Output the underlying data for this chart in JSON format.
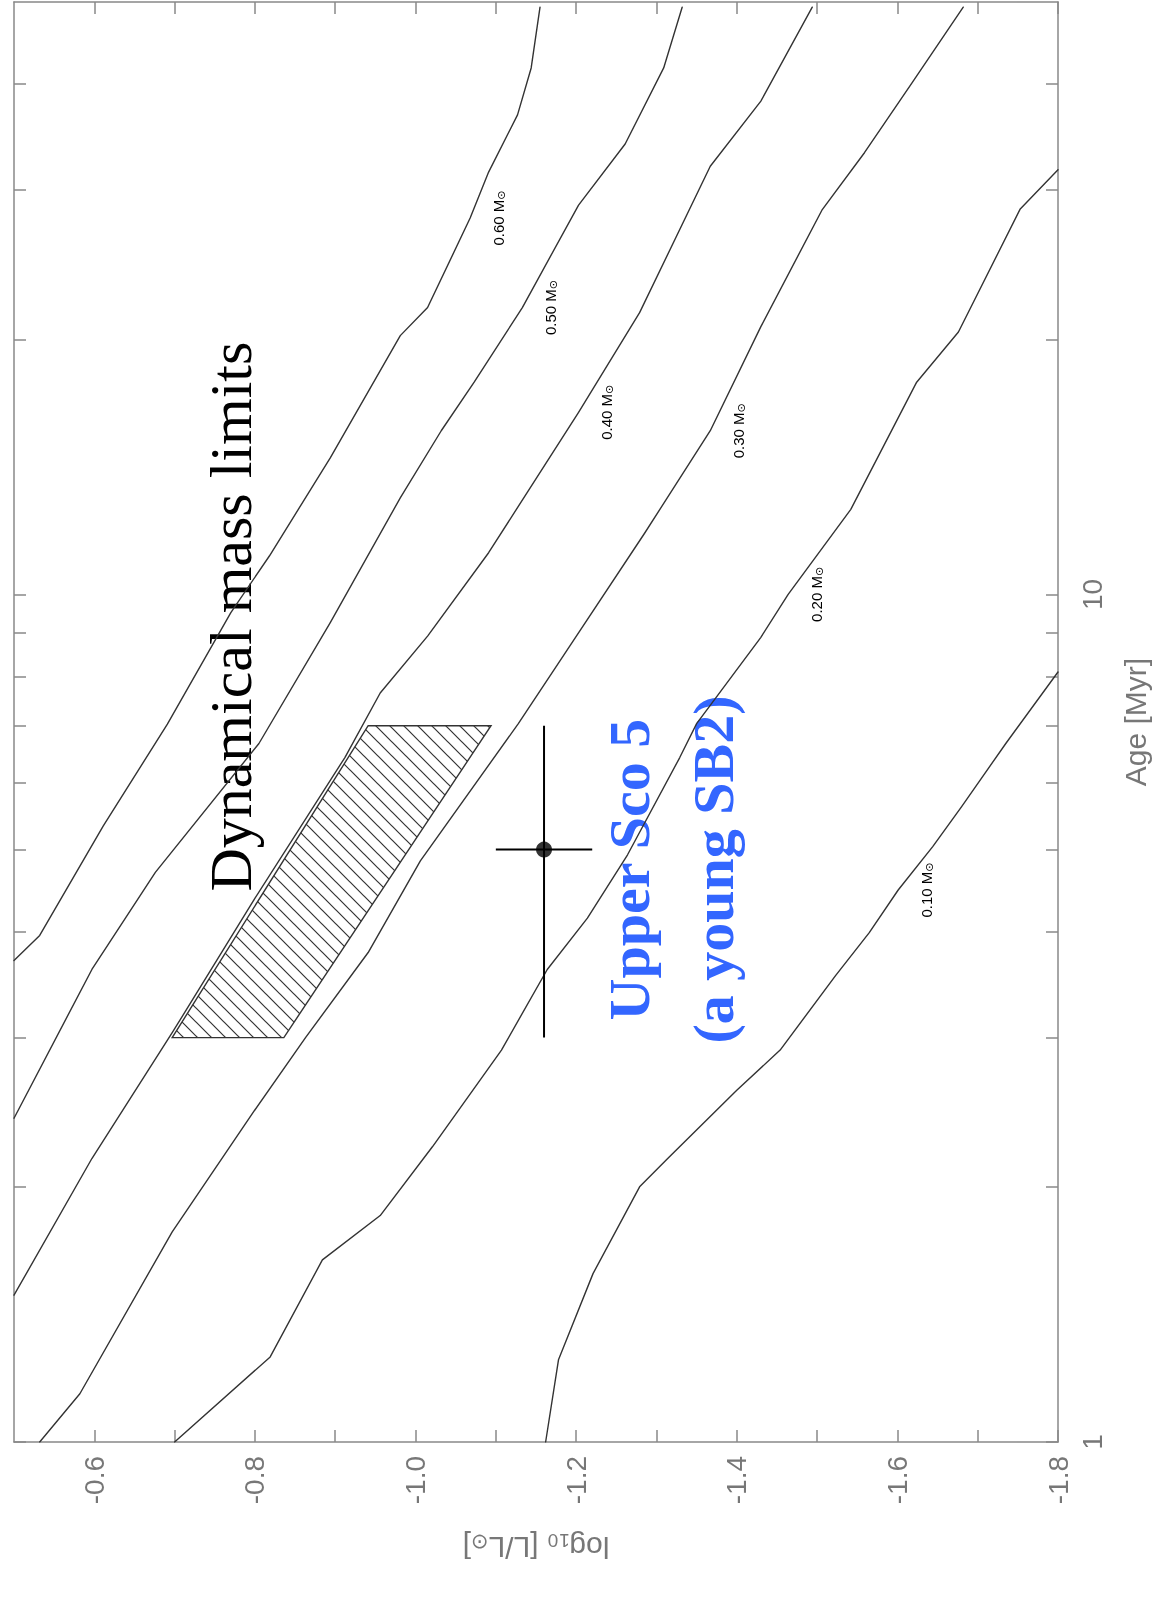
{
  "chart_data": {
    "type": "line",
    "xlabel": "log₁₀ [L/L$_{⊙}$]",
    "ylabel": "Age [Myr]",
    "log": "y",
    "xlim": [
      -0.5,
      -1.8
    ],
    "ylim": [
      1,
      50
    ],
    "xticks": [
      -0.6,
      {
        "value": -0.7,
        "label": null
      },
      -0.8,
      {
        "value": -0.9,
        "label": null
      },
      {
        "value": -1.0,
        "label": "-1.0"
      },
      {
        "value": -1.1,
        "label": null
      },
      -1.2,
      {
        "value": -1.3,
        "label": null
      },
      -1.4,
      {
        "value": -1.5,
        "label": null
      },
      -1.6,
      {
        "value": -1.7,
        "label": null
      },
      -1.8
    ],
    "yticks": [
      1,
      {
        "value": 2,
        "label": null
      },
      {
        "value": 3,
        "label": null
      },
      {
        "value": 4,
        "label": null
      },
      {
        "value": 5,
        "label": null
      },
      {
        "value": 6,
        "label": null
      },
      {
        "value": 7,
        "label": null
      },
      {
        "value": 8,
        "label": null
      },
      {
        "value": 9,
        "label": null
      },
      10,
      {
        "value": 20,
        "label": null
      },
      {
        "value": 30,
        "label": null
      },
      {
        "value": 40,
        "label": null
      }
    ],
    "annotations": [
      {
        "text": "Upper Sco 5\n(a young SB2)",
        "x": -1.16,
        "y": 5
      }
    ],
    "series": [
      {
        "name": "0.60 M$_{⊙}$",
        "color": "#333333",
        "marker": "none",
        "x": [
          -0.5,
          -0.532,
          -0.611,
          -0.691,
          -0.77,
          -0.818,
          -0.894,
          -0.981,
          -1.015,
          -1.068,
          -1.091,
          -1.127,
          -1.144,
          -1.155
        ],
        "values": [
          3.7,
          3.96,
          5.33,
          7.03,
          9.52,
          11.1,
          14.5,
          20.2,
          21.8,
          27.8,
          31.5,
          36.8,
          41.8,
          49.3
        ]
      },
      {
        "name": "0.50 M$_{⊙}$",
        "color": "#333333",
        "marker": "none",
        "x": [
          -0.5,
          -0.597,
          -0.676,
          -0.805,
          -0.894,
          -0.981,
          -1.032,
          -1.073,
          -1.133,
          -1.203,
          -1.261,
          -1.309,
          -1.332
        ],
        "values": [
          2.41,
          3.61,
          4.7,
          6.67,
          9.27,
          13.0,
          15.6,
          17.8,
          21.8,
          28.8,
          34.0,
          41.8,
          49.3
        ]
      },
      {
        "name": "0.40 M$_{⊙}$",
        "color": "#333333",
        "marker": "none",
        "x": [
          -0.5,
          -0.597,
          -0.697,
          -0.798,
          -0.912,
          -0.956,
          -1.015,
          -1.091,
          -1.203,
          -1.279,
          -1.367,
          -1.43,
          -1.494
        ],
        "values": [
          1.49,
          2.16,
          3.04,
          4.35,
          6.42,
          7.65,
          8.93,
          11.2,
          16.4,
          21.5,
          32.0,
          38.2,
          49.3
        ]
      },
      {
        "name": "0.30 M$_{⊙}$",
        "color": "#333333",
        "marker": "none",
        "x": [
          -0.532,
          -0.582,
          -0.697,
          -0.798,
          -0.863,
          -0.941,
          -1.006,
          -1.128,
          -1.192,
          -1.285,
          -1.367,
          -1.43,
          -1.506,
          -1.559,
          -1.618,
          -1.682
        ],
        "values": [
          1.0,
          1.14,
          1.77,
          2.45,
          3.0,
          3.78,
          4.85,
          7.04,
          8.69,
          11.8,
          15.6,
          20.7,
          28.4,
          33.2,
          40.1,
          49.3
        ]
      },
      {
        "name": "0.20 M$_{⊙}$",
        "color": "#333333",
        "marker": "none",
        "x": [
          -0.7,
          -0.819,
          -0.884,
          -0.956,
          -1.021,
          -1.107,
          -1.164,
          -1.214,
          -1.264,
          -1.329,
          -1.35,
          -1.43,
          -1.464,
          -1.542,
          -1.624,
          -1.676,
          -1.753,
          -1.8
        ],
        "values": [
          1.0,
          1.26,
          1.64,
          1.85,
          2.23,
          2.9,
          3.61,
          4.15,
          4.93,
          6.42,
          7.04,
          8.9,
          10.0,
          12.6,
          17.8,
          20.4,
          28.5,
          31.7
        ]
      },
      {
        "name": "0.10 M$_{⊙}$",
        "color": "#333333",
        "marker": "none",
        "x": [
          -1.162,
          -1.178,
          -1.221,
          -1.279,
          -1.314,
          -1.4,
          -1.454,
          -1.523,
          -1.565,
          -1.601,
          -1.644,
          -1.68,
          -1.735,
          -1.8
        ],
        "values": [
          1.0,
          1.25,
          1.58,
          2.0,
          2.16,
          2.6,
          2.9,
          3.55,
          3.99,
          4.48,
          5.04,
          5.62,
          6.67,
          8.1
        ]
      },
      {
        "type": "area",
        "name": "Dynamical mass limits",
        "color": "#333333",
        "x": [
          -0.697,
          -0.836,
          -1.094,
          -0.941
        ],
        "values": [
          3,
          3,
          7,
          7
        ]
      },
      {
        "type": "scatter",
        "color": "#000000",
        "marker": "circle",
        "x": [
          -1.16
        ],
        "values": [
          5
        ],
        "errors": [
          [
            3,
            7
          ]
        ],
        "xerrors": [
          [
            -1.22,
            -1.1
          ]
        ]
      }
    ]
  }
}
